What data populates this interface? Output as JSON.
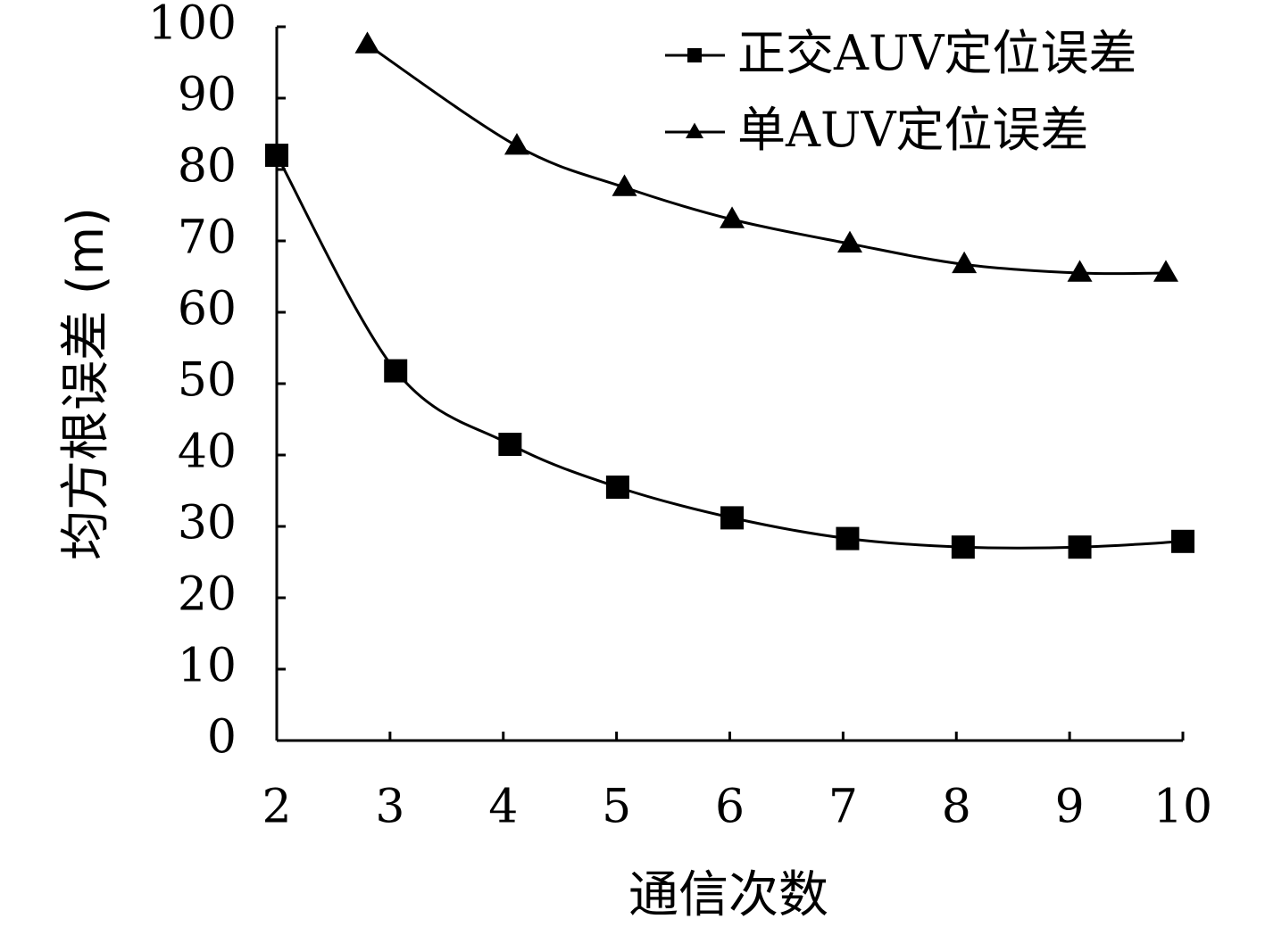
{
  "chart_data": {
    "type": "line",
    "xlabel": "通信次数",
    "ylabel": "均方根误差 (m)",
    "xlim": [
      2,
      10
    ],
    "ylim": [
      0,
      100
    ],
    "x_ticks": [
      "2",
      "3",
      "4",
      "5",
      "6",
      "7",
      "8",
      "9",
      "10"
    ],
    "y_ticks": [
      "0",
      "10",
      "20",
      "30",
      "40",
      "50",
      "60",
      "70",
      "80",
      "90",
      "100"
    ],
    "grid": false,
    "legend_position": "top-right",
    "series": [
      {
        "name": "正交AUV定位误差",
        "marker": "square",
        "x": [
          2,
          3.05,
          4.06,
          5.01,
          6.02,
          7.04,
          8.06,
          9.09,
          10.0
        ],
        "y": [
          82,
          51.8,
          41.5,
          35.5,
          31.2,
          28.3,
          27.1,
          27.1,
          27.9
        ]
      },
      {
        "name": "单AUV定位误差",
        "marker": "triangle",
        "x": [
          2.8,
          4.12,
          5.07,
          6.02,
          7.06,
          8.07,
          9.09,
          9.85
        ],
        "y": [
          97.5,
          83.3,
          77.5,
          73.0,
          69.6,
          66.7,
          65.5,
          65.5
        ]
      }
    ],
    "colors": {
      "line": "#000000",
      "marker": "#000000"
    }
  }
}
